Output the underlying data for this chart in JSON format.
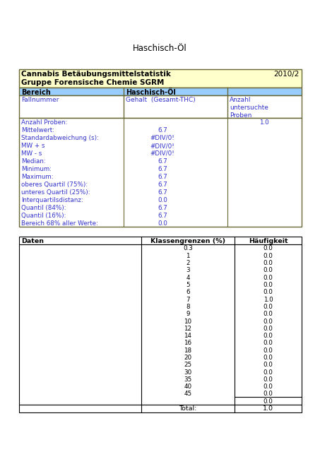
{
  "title": "Haschisch-Öl",
  "header1_left": "Cannabis Betäubungsmittelstatistik",
  "header1_right": "2010/2",
  "header2_left": "Gruppe Forensische Chemie SGRM",
  "stats_labels": [
    "Anzahl Proben:",
    "Mittelwert:",
    "Standardabweichung (s):",
    "MW + s",
    "MW - s",
    "Median:",
    "Minimum:",
    "Maximum:",
    "oberes Quartil (75%):",
    "unteres Quartil (25%):",
    "Interquartilsdistanz:",
    "Quantil (84%):",
    "Quantil (16%):",
    "Bereich 68% aller Werte:"
  ],
  "stats_values_col2": [
    "",
    "6.7",
    "#DIV/0!",
    "#DIV/0!",
    "#DIV/0!",
    "6.7",
    "6.7",
    "6.7",
    "6.7",
    "6.7",
    "0.0",
    "6.7",
    "6.7",
    "0.0"
  ],
  "stats_values_col3": [
    "1.0",
    "",
    "",
    "",
    "",
    "",
    "",
    "",
    "",
    "",
    "",
    "",
    "",
    ""
  ],
  "table2_headers": [
    "Daten",
    "Klassengrenzen (%)",
    "Häufigkeit"
  ],
  "table2_klassengrenze": [
    "0.3",
    "1",
    "2",
    "3",
    "4",
    "5",
    "6",
    "7",
    "8",
    "9",
    "10",
    "12",
    "14",
    "16",
    "18",
    "20",
    "25",
    "30",
    "35",
    "40",
    "45",
    ""
  ],
  "table2_haeufigkeit": [
    "0.0",
    "0.0",
    "0.0",
    "0.0",
    "0.0",
    "0.0",
    "0.0",
    "1.0",
    "0.0",
    "0.0",
    "0.0",
    "0.0",
    "0.0",
    "0.0",
    "0.0",
    "0.0",
    "0.0",
    "0.0",
    "0.0",
    "0.0",
    "0.0",
    "0.0"
  ],
  "table2_total_label": "Total:",
  "table2_total_value": "1.0",
  "color_yellow": "#FFFFCC",
  "color_blue_header": "#99CCFF",
  "color_blue_text": "#3333CC",
  "color_border": "#666633",
  "color_border2": "#999999",
  "color_white": "#FFFFFF",
  "color_black": "#000000"
}
